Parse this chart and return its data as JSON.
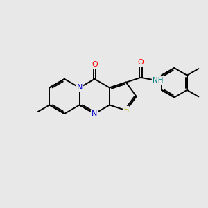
{
  "bg_color": "#e8e8e8",
  "atom_colors": {
    "N": "#0000cc",
    "O": "#ff0000",
    "S": "#bbbb00",
    "NH": "#008080",
    "C": "#000000"
  },
  "bond_color": "#000000",
  "bond_width": 1.4,
  "figsize": [
    3.0,
    3.0
  ],
  "dpi": 100
}
